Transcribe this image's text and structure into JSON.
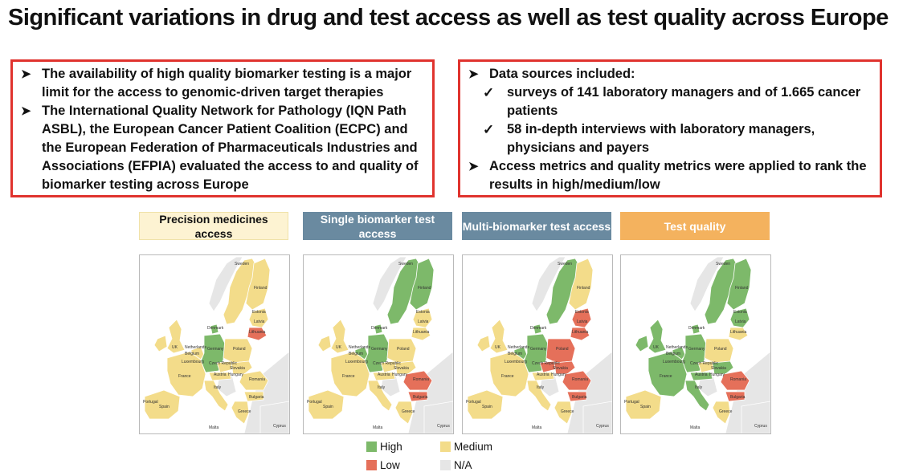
{
  "slide": {
    "title": "Significant variations in drug and test access as well as test quality across Europe"
  },
  "left_box": {
    "items": [
      "The availability of high quality biomarker testing is a major limit for the access to genomic-driven target therapies",
      "The International Quality Network for Pathology (IQN Path ASBL), the European Cancer Patient Coalition (ECPC) and the European Federation of Pharmaceuticals Industries and Associations (EFPIA) evaluated the access to and quality of biomarker testing across Europe"
    ]
  },
  "right_box": {
    "item1": "Data sources included:",
    "subitems": [
      "surveys of 141 laboratory managers and of 1.665 cancer patients",
      "58 in-depth interviews with laboratory managers, physicians and payers"
    ],
    "item2": "Access metrics and quality metrics were applied to rank the results in high/medium/low"
  },
  "colors": {
    "high": "#7db96a",
    "medium": "#f3dc8a",
    "low": "#e5705a",
    "na": "#e6e6e6",
    "border_red": "#e0332e",
    "header_blue": "#6a8aa0",
    "header_orange": "#f4b25e",
    "header_cream": "#fdf3d2"
  },
  "maps": [
    {
      "header": "Precision medicines access",
      "ratings": {
        "nordic": "medium",
        "finland": "medium",
        "baltics": "medium",
        "lithuania": "low",
        "uk": "medium",
        "ireland": "medium",
        "benelux": "medium",
        "germany": "high",
        "poland": "medium",
        "france": "medium",
        "iberia": "medium",
        "italy": "medium",
        "austria": "medium",
        "czech": "medium",
        "central": "medium",
        "romania": "medium",
        "bulgaria": "medium",
        "greece": "medium"
      }
    },
    {
      "header": "Single biomarker test access",
      "ratings": {
        "nordic": "high",
        "finland": "high",
        "baltics": "medium",
        "lithuania": "medium",
        "uk": "medium",
        "ireland": "medium",
        "benelux": "high",
        "germany": "high",
        "poland": "medium",
        "france": "medium",
        "iberia": "medium",
        "italy": "medium",
        "austria": "medium",
        "czech": "medium",
        "central": "medium",
        "romania": "low",
        "bulgaria": "low",
        "greece": "medium"
      }
    },
    {
      "header": "Multi-biomarker test access",
      "ratings": {
        "nordic": "high",
        "finland": "medium",
        "baltics": "low",
        "lithuania": "low",
        "uk": "medium",
        "ireland": "medium",
        "benelux": "high",
        "germany": "high",
        "poland": "low",
        "france": "medium",
        "iberia": "medium",
        "italy": "medium",
        "austria": "medium",
        "czech": "low",
        "central": "low",
        "romania": "low",
        "bulgaria": "low",
        "greece": "medium"
      }
    },
    {
      "header": "Test quality",
      "ratings": {
        "nordic": "high",
        "finland": "high",
        "baltics": "high",
        "lithuania": "medium",
        "uk": "high",
        "ireland": "high",
        "benelux": "high",
        "germany": "high",
        "poland": "medium",
        "france": "high",
        "iberia": "medium",
        "italy": "high",
        "austria": "high",
        "czech": "medium",
        "central": "high",
        "romania": "low",
        "bulgaria": "low",
        "greece": "medium"
      }
    }
  ],
  "map_labels": {
    "sweden": "Sweden",
    "finland": "Finland",
    "estonia": "Estonia",
    "latvia": "Latvia",
    "lithuania": "Lithuania",
    "denmark": "Denmark",
    "uk": "UK",
    "netherlands": "Netherlands",
    "germany": "Germany",
    "belgium": "Belgium",
    "luxembourg": "Luxembourg",
    "czech": "Czech Republic",
    "slovakia": "Slovakia",
    "poland": "Poland",
    "austria": "Austria",
    "hungary": "Hungary",
    "france": "France",
    "romania": "Romania",
    "italy": "Italy",
    "bulgaria": "Bulgaria",
    "portugal": "Portugal",
    "spain": "Spain",
    "greece": "Greece",
    "malta": "Malta",
    "cyprus": "Cyprus"
  },
  "legend": {
    "high": "High",
    "medium": "Medium",
    "low": "Low",
    "na": "N/A"
  }
}
